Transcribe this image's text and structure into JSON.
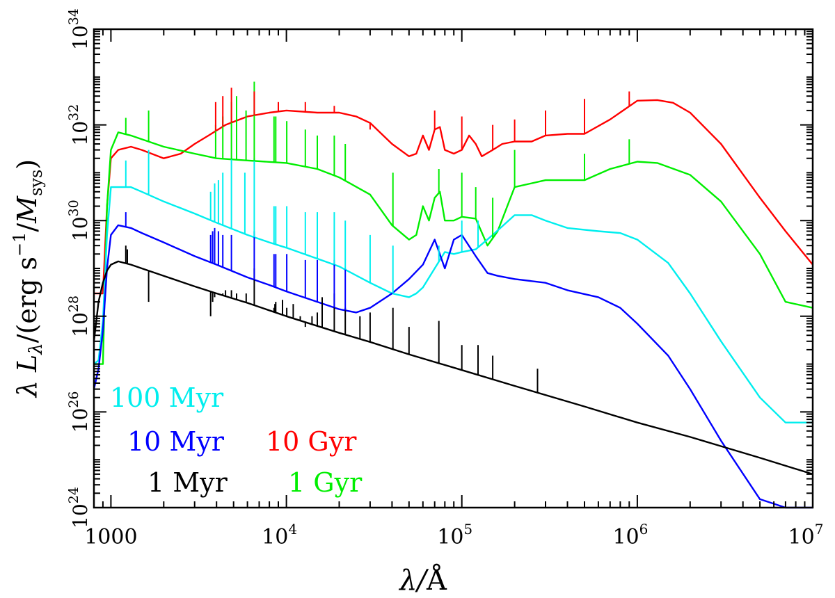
{
  "chart_data": {
    "type": "line",
    "xlabel_main": "λ/",
    "xlabel_unit": "Å",
    "ylabel_main": "λ L",
    "ylabel_sub": "λ",
    "ylabel_open": "/(erg s",
    "ylabel_exp": "−1",
    "ylabel_mid": "/",
    "ylabel_m": "M",
    "ylabel_msub": "sys",
    "ylabel_close": ")",
    "x_scale": "log",
    "y_scale": "log",
    "xlim": [
      800,
      10000000
    ],
    "ylim": [
      1e+24,
      1e+34
    ],
    "x_ticks": [
      {
        "value": 1000,
        "label": "1000",
        "exp": ""
      },
      {
        "value": 10000,
        "label": "10",
        "exp": "4"
      },
      {
        "value": 100000,
        "label": "10",
        "exp": "5"
      },
      {
        "value": 1000000,
        "label": "10",
        "exp": "6"
      },
      {
        "value": 10000000,
        "label": "10",
        "exp": "7"
      }
    ],
    "y_ticks": [
      {
        "value": 1e+24,
        "label": "10",
        "exp": "24"
      },
      {
        "value": 1e+26,
        "label": "10",
        "exp": "26"
      },
      {
        "value": 1e+28,
        "label": "10",
        "exp": "28"
      },
      {
        "value": 1e+30,
        "label": "10",
        "exp": "30"
      },
      {
        "value": 1e+32,
        "label": "10",
        "exp": "32"
      },
      {
        "value": 1e+34,
        "label": "10",
        "exp": "34"
      }
    ],
    "grid": false,
    "series": [
      {
        "name": "10 Gyr",
        "color": "#ff0000",
        "x": [
          800,
          900,
          950,
          1000,
          1100,
          1300,
          1500,
          2000,
          2500,
          3000,
          3600,
          4500,
          6000,
          8000,
          10000,
          15000,
          20000,
          25000,
          30000,
          40000,
          50000,
          55000,
          60000,
          65000,
          70000,
          75000,
          80000,
          90000,
          100000,
          110000,
          120000,
          130000,
          150000,
          170000,
          200000,
          250000,
          300000,
          400000,
          500000,
          700000,
          1000000,
          1300000,
          1600000,
          2000000,
          3000000,
          5000000,
          7000000,
          10000000
        ],
        "y": [
          3e+28,
          3e+28,
          2e+30,
          2e+31,
          3e+31,
          3.5e+31,
          3e+31,
          2e+31,
          2.5e+31,
          4e+31,
          6e+31,
          1e+32,
          1.5e+32,
          1.8e+32,
          2e+32,
          1.8e+32,
          1.8e+32,
          1.5e+32,
          1.1e+32,
          4e+31,
          2.2e+31,
          2.5e+31,
          6e+31,
          3e+31,
          8e+31,
          9e+31,
          3e+31,
          2.5e+31,
          3e+31,
          6e+31,
          4e+31,
          2.2e+31,
          3e+31,
          4e+31,
          4.5e+31,
          4.5e+31,
          6e+31,
          6.5e+31,
          6.5e+31,
          1.3e+32,
          3.2e+32,
          3.3e+32,
          2.9e+32,
          1.8e+32,
          4e+31,
          3e+30,
          6e+29,
          1.2e+29
        ]
      },
      {
        "name": "1 Gyr",
        "color": "#00ee00",
        "x": [
          800,
          900,
          950,
          1000,
          1100,
          1300,
          1500,
          2000,
          3000,
          4000,
          6000,
          10000,
          15000,
          20000,
          30000,
          40000,
          50000,
          55000,
          60000,
          65000,
          70000,
          75000,
          80000,
          90000,
          100000,
          120000,
          140000,
          160000,
          200000,
          300000,
          500000,
          700000,
          1000000,
          1300000,
          2000000,
          3000000,
          5000000,
          7000000,
          10000000
        ],
        "y": [
          1e+27,
          1e+27,
          2e+30,
          3e+31,
          7e+31,
          6e+31,
          5e+31,
          3.5e+31,
          2.5e+31,
          2e+31,
          1.8e+31,
          1.6e+31,
          1.2e+31,
          8e+30,
          3.5e+30,
          8e+29,
          4e+29,
          5e+29,
          2e+30,
          1e+30,
          3e+30,
          4e+30,
          1e+30,
          1e+30,
          1.2e+30,
          1.1e+30,
          3e+29,
          6e+29,
          5e+30,
          7e+30,
          7e+30,
          1.2e+31,
          1.7e+31,
          1.6e+31,
          9e+30,
          2.5e+30,
          2e+29,
          2e+28,
          1.5e+28
        ]
      },
      {
        "name": "100 Myr",
        "color": "#00eeee",
        "x": [
          800,
          850,
          900,
          950,
          1000,
          1100,
          1300,
          1500,
          2000,
          3000,
          4000,
          6000,
          8000,
          10000,
          15000,
          20000,
          30000,
          40000,
          50000,
          55000,
          60000,
          70000,
          80000,
          90000,
          100000,
          120000,
          150000,
          200000,
          250000,
          300000,
          400000,
          600000,
          800000,
          1000000,
          1500000,
          2000000,
          3000000,
          5000000,
          7000000,
          10000000
        ],
        "y": [
          1e+27,
          1.2e+27,
          8e+27,
          5e+29,
          5e+30,
          5e+30,
          5e+30,
          4e+30,
          2.5e+30,
          1.4e+30,
          9e+29,
          5e+29,
          3.5e+29,
          2.7e+29,
          1.6e+29,
          1.1e+29,
          5e+28,
          3e+28,
          2.5e+28,
          3e+28,
          4e+28,
          1e+29,
          2.2e+29,
          2e+29,
          2.2e+29,
          2.5e+29,
          5e+29,
          1.3e+30,
          1.3e+30,
          1e+30,
          7e+29,
          6e+29,
          5.5e+29,
          4e+29,
          1.3e+29,
          3e+28,
          3e+27,
          2e+26,
          6e+25,
          6e+25
        ]
      },
      {
        "name": "10 Myr",
        "color": "#0000ff",
        "x": [
          800,
          850,
          900,
          950,
          1000,
          1100,
          1300,
          1500,
          2000,
          3000,
          4000,
          6000,
          8000,
          10000,
          15000,
          20000,
          25000,
          30000,
          40000,
          50000,
          60000,
          70000,
          80000,
          90000,
          100000,
          120000,
          140000,
          160000,
          200000,
          300000,
          400000,
          600000,
          800000,
          1000000,
          1500000,
          2000000,
          3000000,
          5000000,
          7000000,
          10000000
        ],
        "y": [
          3e+26,
          8e+26,
          5e+27,
          1e+29,
          5e+29,
          8e+29,
          7e+29,
          5.5e+29,
          3.5e+29,
          1.8e+29,
          1.2e+29,
          6.5e+28,
          4.5e+28,
          3.3e+28,
          2e+28,
          1.4e+28,
          1.2e+28,
          1.5e+28,
          3e+28,
          6e+28,
          1.2e+29,
          4e+29,
          1e+29,
          4e+29,
          5e+29,
          1.8e+29,
          8e+28,
          7e+28,
          6e+28,
          5e+28,
          3.5e+28,
          2.5e+28,
          1.5e+28,
          7e+27,
          1.5e+27,
          3e+26,
          2.5e+25,
          1.5e+24,
          7e+23,
          7e+23
        ]
      },
      {
        "name": "1 Myr",
        "color": "#000000",
        "x": [
          800,
          850,
          900,
          950,
          1000,
          1100,
          1300,
          1500,
          2000,
          3000,
          4000,
          6000,
          10000,
          20000,
          30000,
          50000,
          100000,
          200000,
          500000,
          1000000,
          2000000,
          5000000,
          10000000
        ],
        "y": [
          3e+27,
          2e+28,
          5e+28,
          9e+28,
          1.2e+29,
          1.4e+29,
          1.2e+29,
          1e+29,
          7e+28,
          4.2e+28,
          3e+28,
          1.9e+28,
          1e+28,
          4.5e+27,
          2.9e+27,
          1.6e+27,
          7.5e+26,
          3.5e+26,
          1.3e+26,
          6e+25,
          3e+25,
          1.1e+25,
          5e+24
        ]
      }
    ],
    "spikes": [
      {
        "series": "1 Myr",
        "x": [
          1215,
          1240,
          1640,
          3700,
          3800,
          3900,
          4100,
          4340,
          4500,
          4860,
          5200,
          5900,
          6560,
          8500,
          8600,
          8700,
          9500,
          10050,
          10940,
          12000,
          12820,
          14000,
          15000,
          16000,
          18750,
          21660,
          26250,
          30000,
          40500,
          50000,
          74000,
          100000,
          123700,
          150000,
          270000
        ],
        "y": [
          3e+29,
          2.5e+29,
          2e+28,
          1e+28,
          2e+28,
          2.5e+28,
          3e+28,
          3e+28,
          3.5e+28,
          3.5e+28,
          3e+28,
          3e+28,
          1e+29,
          1.5e+28,
          1.8e+28,
          2e+28,
          2.2e+28,
          1.5e+28,
          1.8e+28,
          1e+28,
          6e+27,
          1e+28,
          1.2e+28,
          2.5e+28,
          3e+28,
          1.5e+28,
          1e+28,
          1.2e+28,
          1.5e+28,
          6e+27,
          8e+27,
          2.5e+27,
          2.5e+27,
          1.5e+27,
          8e+26
        ]
      },
      {
        "series": "10 Myr",
        "x": [
          1215,
          3700,
          3800,
          3900,
          4100,
          4340,
          4860,
          6560,
          8500,
          8700,
          10050,
          12820,
          15000,
          18750,
          21660
        ],
        "y": [
          1.5e+30,
          5e+29,
          6e+29,
          7e+29,
          6e+29,
          5e+29,
          5e+29,
          6e+29,
          2e+29,
          2e+29,
          2e+29,
          1.5e+29,
          1.5e+29,
          1.5e+29,
          1e+29
        ]
      },
      {
        "series": "100 Myr",
        "x": [
          1215,
          1640,
          3700,
          3900,
          4100,
          4340,
          4860,
          5800,
          6560,
          8500,
          8700,
          10050,
          12820,
          15000,
          18750,
          21660,
          30000,
          40500,
          74000,
          100000,
          123700
        ],
        "y": [
          1.8e+31,
          3e+31,
          4e+30,
          6e+30,
          7e+30,
          1e+31,
          2e+31,
          1e+31,
          2e+31,
          2e+30,
          2e+30,
          2e+30,
          1.5e+30,
          1.5e+30,
          1.5e+30,
          1e+30,
          5e+29,
          3e+29,
          3e+29,
          1e+30,
          1e+30
        ]
      },
      {
        "series": "1 Gyr",
        "x": [
          1215,
          1640,
          3950,
          4340,
          4860,
          5200,
          5890,
          6560,
          8500,
          8700,
          10050,
          12820,
          15000,
          18750,
          21660,
          40500,
          74000,
          100000,
          120000,
          150000,
          200000,
          500000,
          900000
        ],
        "y": [
          1.4e+32,
          2e+32,
          1e+32,
          1.5e+32,
          3e+32,
          4e+32,
          2e+32,
          8e+32,
          1.5e+32,
          1.5e+32,
          1.2e+32,
          8e+31,
          6e+31,
          6e+31,
          4e+31,
          1e+31,
          1.2e+31,
          1e+31,
          5e+30,
          3e+30,
          3e+31,
          2.5e+31,
          5e+31
        ]
      },
      {
        "series": "10 Gyr",
        "x": [
          3950,
          4340,
          4860,
          6560,
          9000,
          12820,
          18750,
          30000,
          70000,
          100000,
          150000,
          200000,
          300000,
          500000,
          900000
        ],
        "y": [
          3e+32,
          4e+32,
          6e+32,
          5e+32,
          3e+32,
          3e+32,
          2.5e+32,
          8e+31,
          2e+32,
          1.5e+32,
          1e+32,
          1.3e+32,
          2e+32,
          3.5e+32,
          5e+32
        ]
      }
    ],
    "annotations": [
      {
        "text": "100 Myr",
        "color": "#00eeee"
      },
      {
        "text": "10 Myr",
        "color": "#0000ff"
      },
      {
        "text": "10 Gyr",
        "color": "#ff0000"
      },
      {
        "text": "1 Myr",
        "color": "#000000"
      },
      {
        "text": "1 Gyr",
        "color": "#00ee00"
      }
    ]
  }
}
